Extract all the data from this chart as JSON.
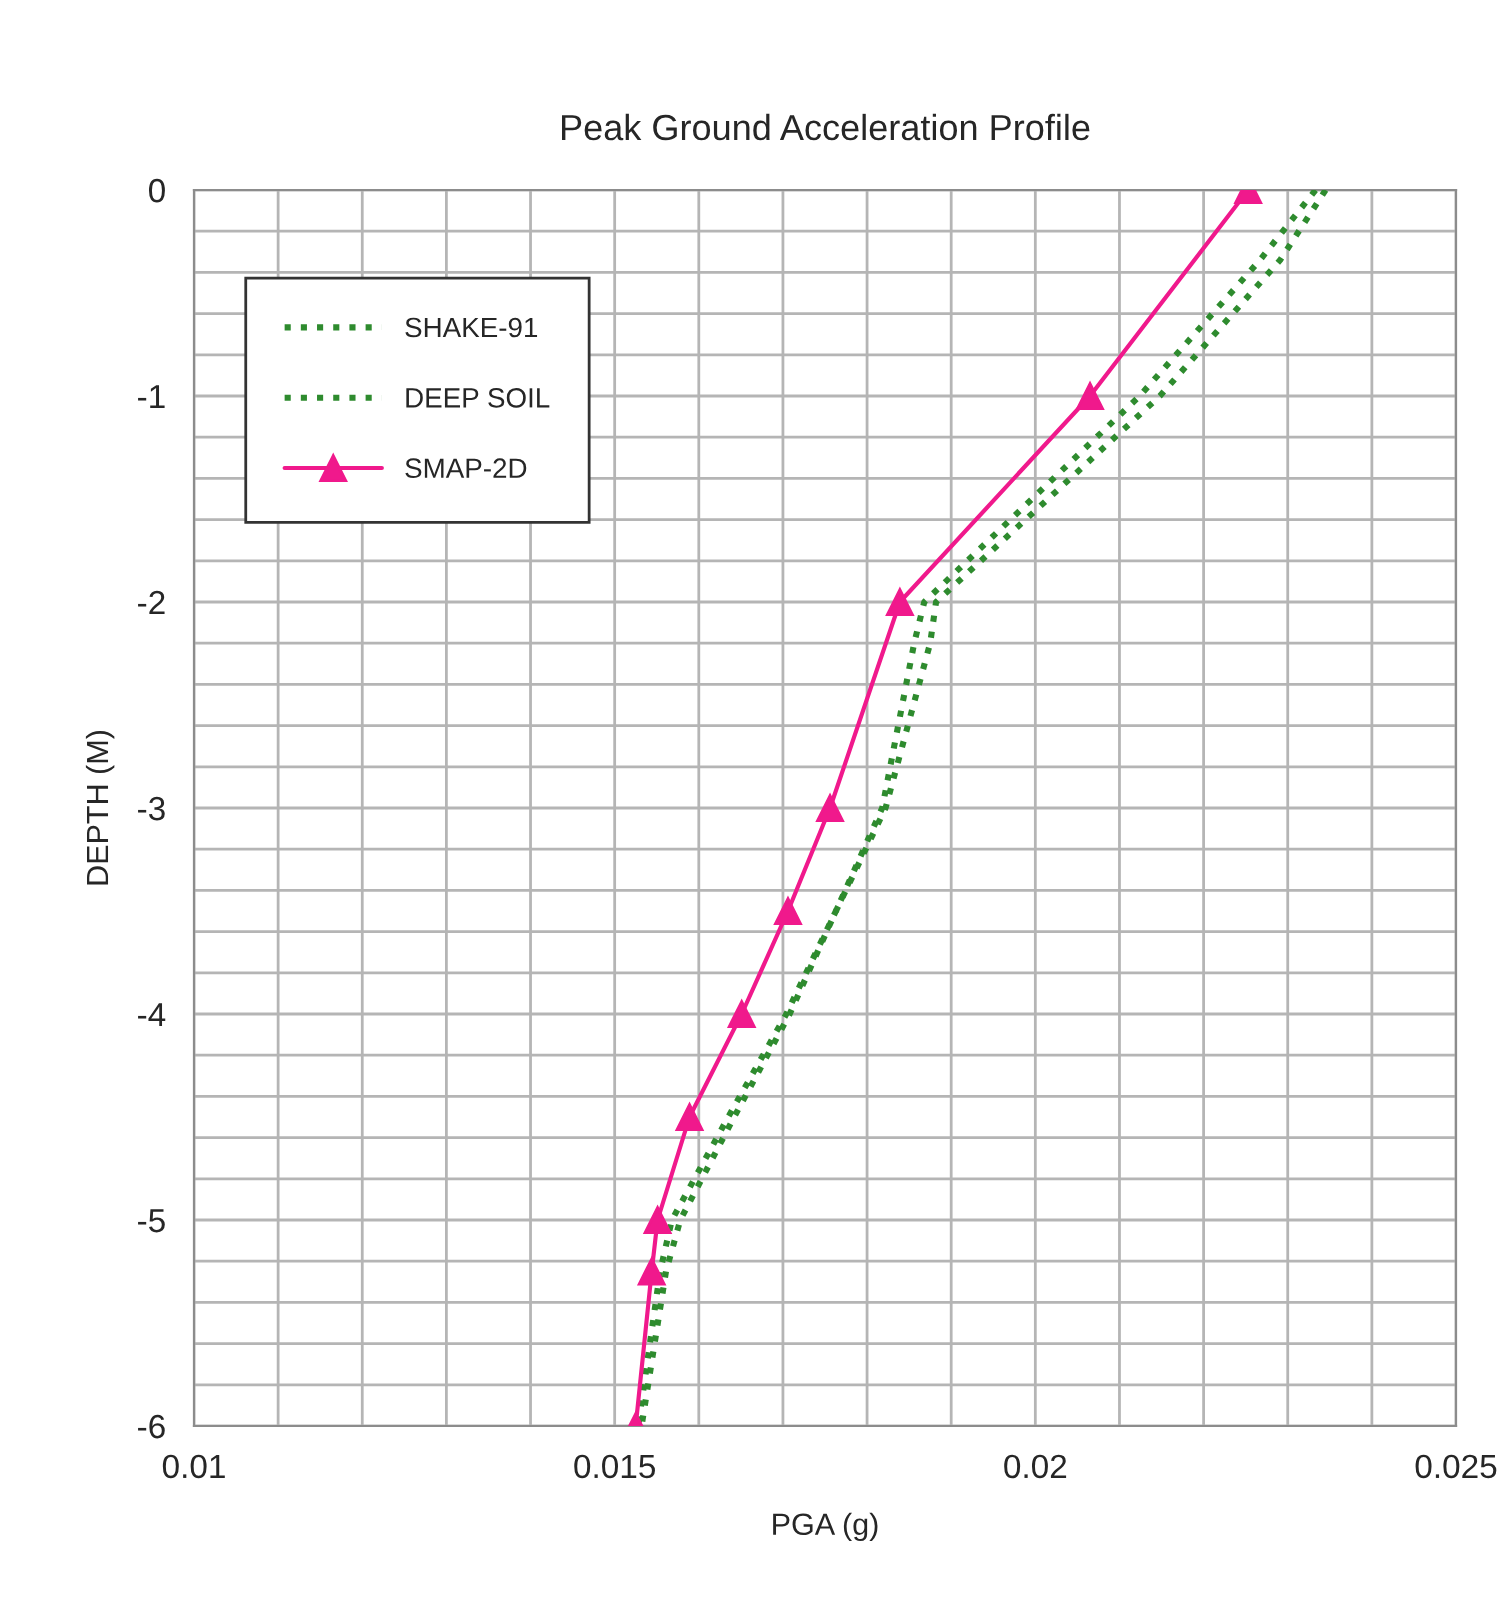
{
  "chart_data": {
    "type": "line",
    "title": "Peak Ground Acceleration Profile",
    "xlabel": "PGA (g)",
    "ylabel": "DEPTH (M)",
    "xlim": [
      0.01,
      0.025
    ],
    "ylim": [
      -6,
      0
    ],
    "xticks": [
      0.01,
      {
        "value": 0.011,
        "label": null
      },
      {
        "value": 0.012,
        "label": null
      },
      {
        "value": 0.013,
        "label": null
      },
      {
        "value": 0.014,
        "label": null
      },
      0.015,
      {
        "value": 0.016,
        "label": null
      },
      {
        "value": 0.017,
        "label": null
      },
      {
        "value": 0.018,
        "label": null
      },
      {
        "value": 0.019,
        "label": null
      },
      0.02,
      {
        "value": 0.021,
        "label": null
      },
      {
        "value": 0.022,
        "label": null
      },
      {
        "value": 0.023,
        "label": null
      },
      {
        "value": 0.024,
        "label": null
      },
      0.025
    ],
    "yticks": [
      -6,
      {
        "value": -5.8,
        "label": null
      },
      {
        "value": -5.6,
        "label": null
      },
      {
        "value": -5.4,
        "label": null
      },
      {
        "value": -5.2,
        "label": null
      },
      -5,
      {
        "value": -4.8,
        "label": null
      },
      {
        "value": -4.6,
        "label": null
      },
      {
        "value": -4.4,
        "label": null
      },
      {
        "value": -4.2,
        "label": null
      },
      -4,
      {
        "value": -3.8,
        "label": null
      },
      {
        "value": -3.6,
        "label": null
      },
      {
        "value": -3.4,
        "label": null
      },
      {
        "value": -3.2,
        "label": null
      },
      -3,
      {
        "value": -2.8,
        "label": null
      },
      {
        "value": -2.6,
        "label": null
      },
      {
        "value": -2.4,
        "label": null
      },
      {
        "value": -2.2,
        "label": null
      },
      -2,
      {
        "value": -1.8,
        "label": null
      },
      {
        "value": -1.6,
        "label": null
      },
      {
        "value": -1.4,
        "label": null
      },
      {
        "value": -1.2,
        "label": null
      },
      -1,
      {
        "value": -0.8,
        "label": null
      },
      {
        "value": -0.6,
        "label": null
      },
      {
        "value": -0.4,
        "label": null
      },
      {
        "value": -0.2,
        "label": null
      },
      0
    ],
    "grid": true,
    "legend": "top left",
    "series": [
      {
        "name": "SHAKE-91",
        "color": "#2e8b2e",
        "line_style": "dotted",
        "marker": "none",
        "x": [
          0.02333,
          0.02267,
          0.02124,
          0.01868,
          0.01856,
          0.01818,
          0.01763,
          0.01704,
          0.01635,
          0.01568,
          0.01554,
          0.01528
        ],
        "values": [
          0,
          -0.34,
          -1,
          -2,
          -2.2,
          -3,
          -3.5,
          -4,
          -4.5,
          -5,
          -5.25,
          -6
        ]
      },
      {
        "name": "DEEP SOIL",
        "color": "#2e8b2e",
        "line_style": "dotted",
        "marker": "none",
        "x": [
          0.02345,
          0.02291,
          0.02148,
          0.01882,
          0.01875,
          0.01822,
          0.01763,
          0.01708,
          0.01642,
          0.01578,
          0.01561,
          0.01532
        ],
        "values": [
          0,
          -0.34,
          -1,
          -2,
          -2.2,
          -3,
          -3.5,
          -4,
          -4.5,
          -5,
          -5.25,
          -6
        ]
      },
      {
        "name": "SMAP-2D",
        "color": "#f0198c",
        "line_style": "solid",
        "marker": "triangle",
        "x": [
          0.02253,
          0.02065,
          0.01839,
          0.01756,
          0.01706,
          0.01651,
          0.01589,
          0.01551,
          0.01544,
          0.01525
        ],
        "values": [
          0,
          -1,
          -2,
          -3,
          -3.5,
          -4,
          -4.5,
          -5,
          -5.25,
          -6
        ]
      }
    ]
  }
}
